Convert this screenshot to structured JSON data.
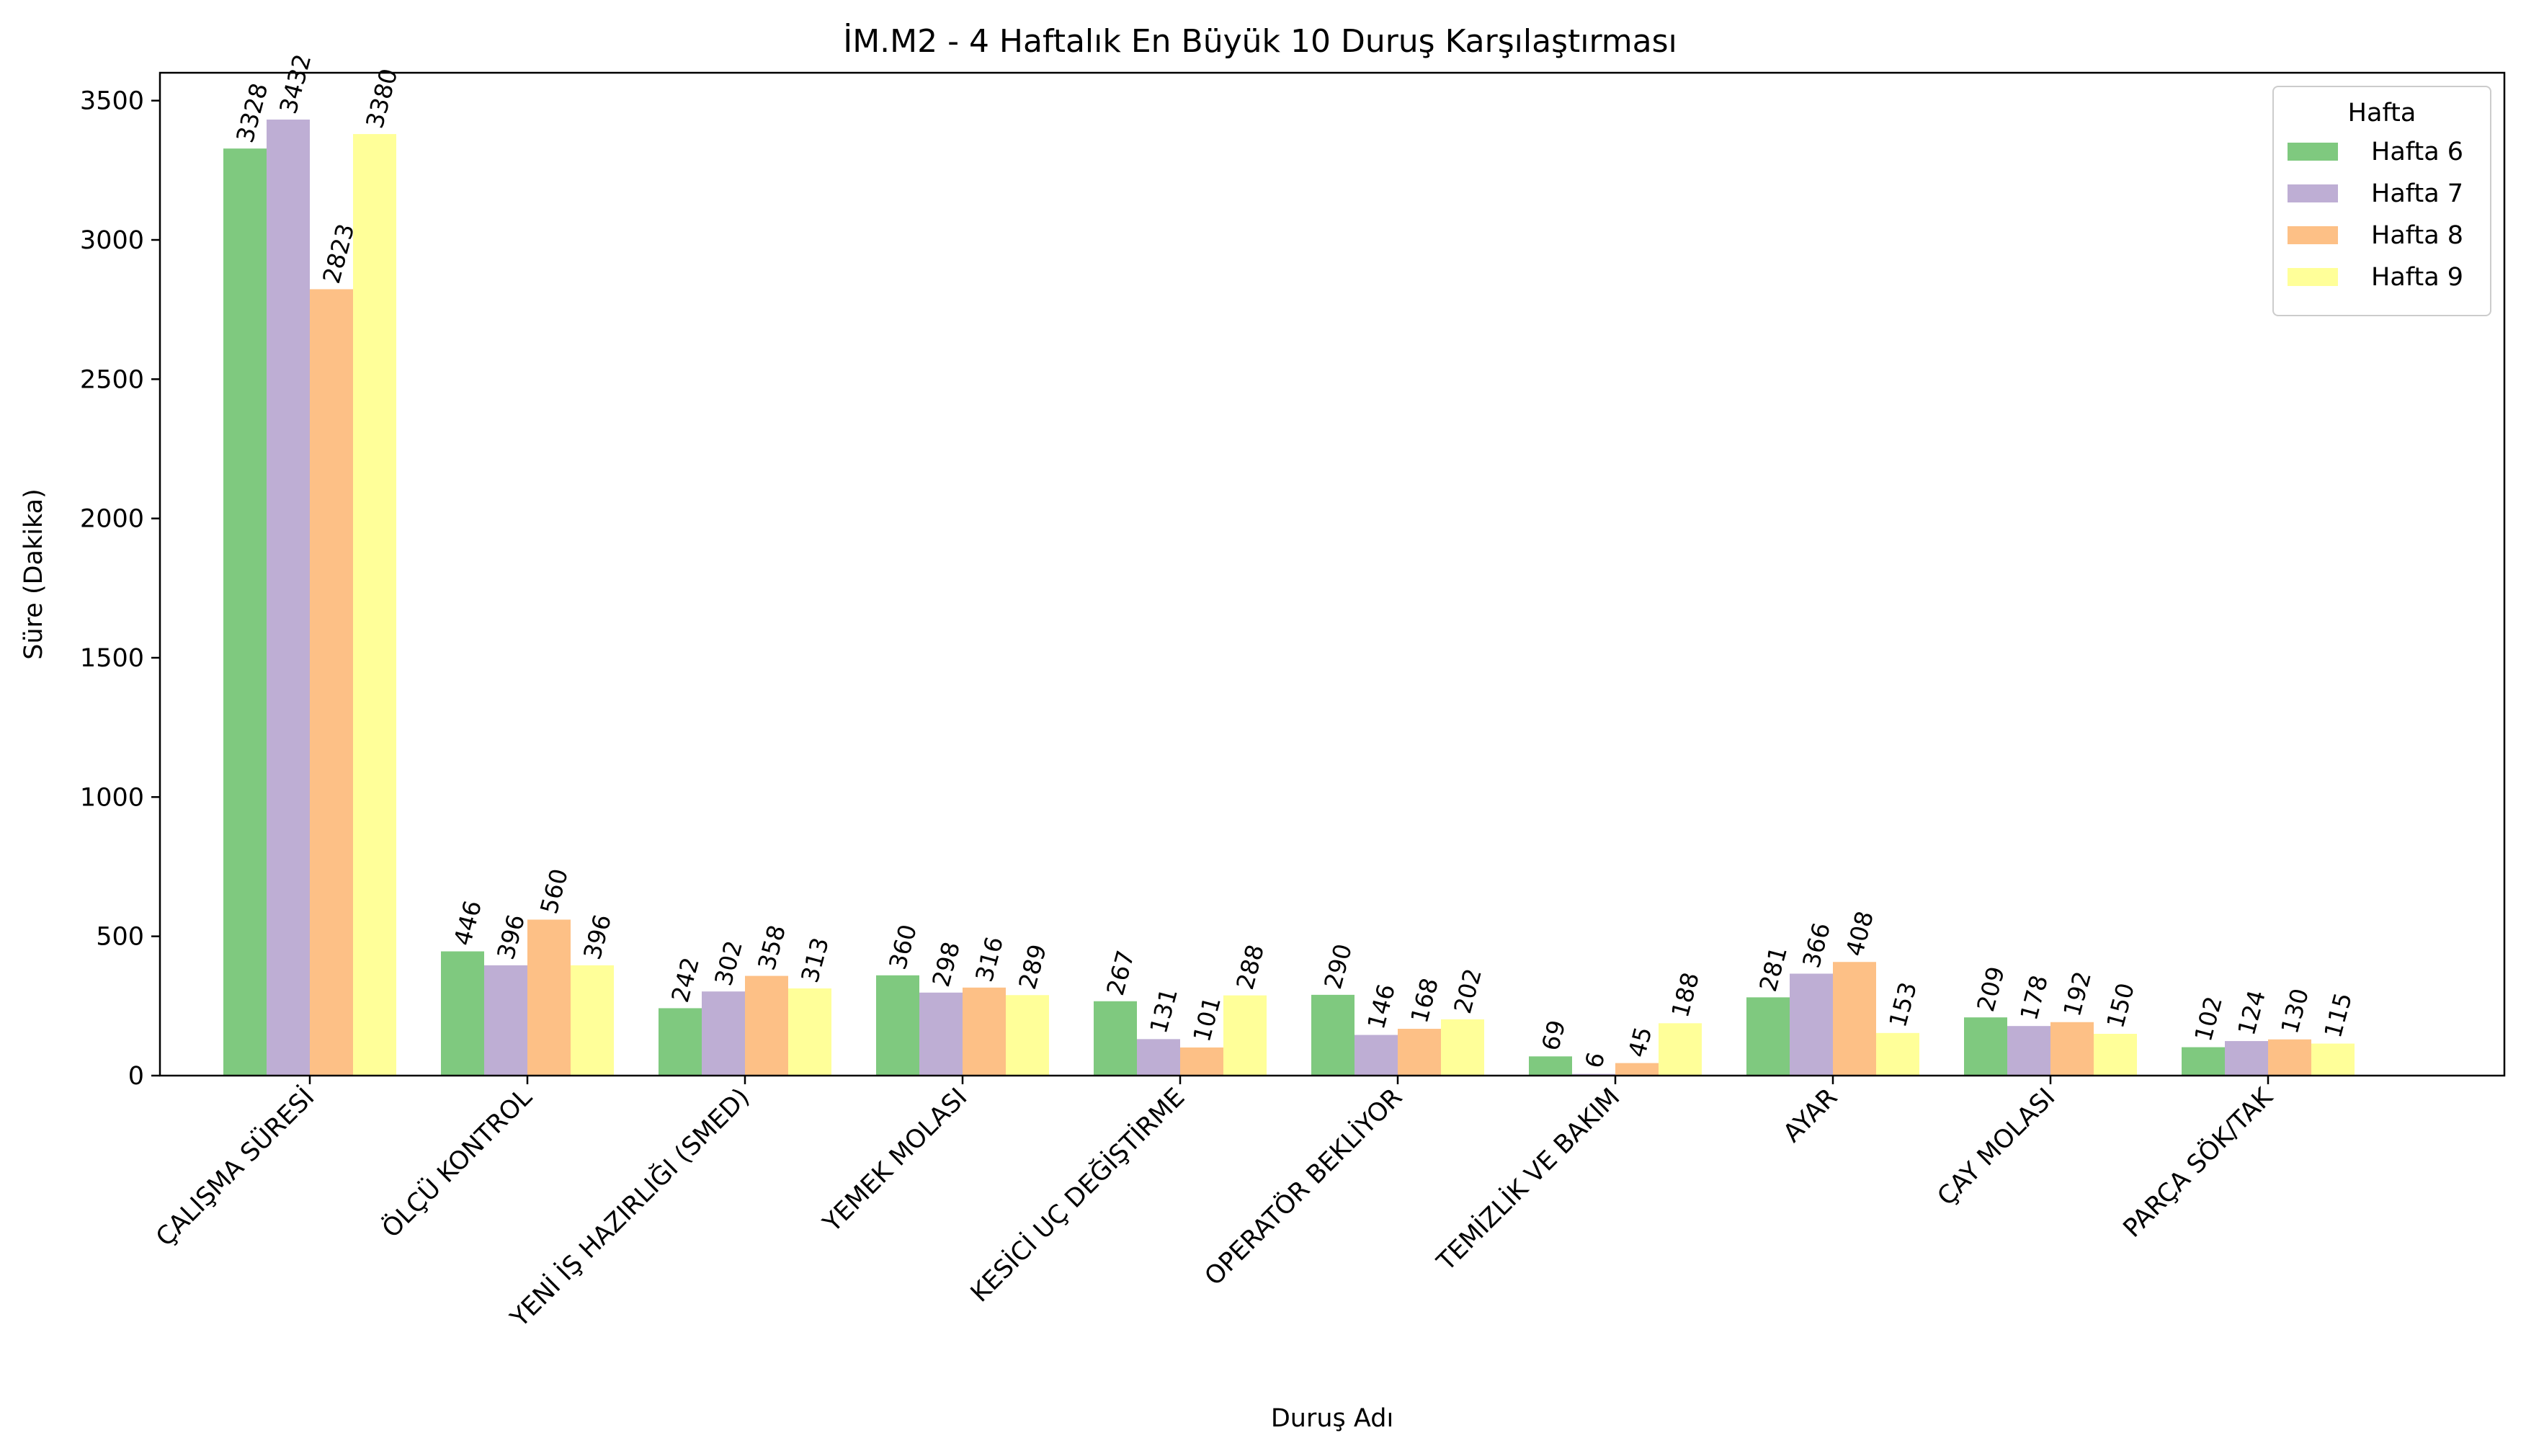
{
  "chart_data": {
    "type": "bar",
    "title": "İM.M2 - 4 Haftalık En Büyük 10 Duruş Karşılaştırması",
    "xlabel": "Duruş Adı",
    "ylabel": "Süre (Dakika)",
    "ylim": [
      0,
      3600
    ],
    "yticks": [
      0,
      500,
      1000,
      1500,
      2000,
      2500,
      3000,
      3500
    ],
    "grid": false,
    "legend": {
      "title": "Hafta",
      "placement": "top-right"
    },
    "categories": [
      "ÇALIŞMA SÜRESİ",
      "ÖLÇÜ KONTROL",
      "YENİ İŞ HAZIRLIĞI (SMED)",
      "YEMEK MOLASI",
      "KESİCİ UÇ DEĞİŞTİRME",
      "OPERATÖR BEKLİYOR",
      "TEMİZLİK VE BAKIM",
      "AYAR",
      "ÇAY MOLASI",
      "PARÇA SÖK/TAK"
    ],
    "series": [
      {
        "name": "Hafta 6",
        "color": "#7fc97f",
        "values": [
          3328,
          446,
          242,
          360,
          267,
          290,
          69,
          281,
          209,
          102
        ]
      },
      {
        "name": "Hafta 7",
        "color": "#beaed4",
        "values": [
          3432,
          396,
          302,
          298,
          131,
          146,
          6,
          366,
          178,
          124
        ]
      },
      {
        "name": "Hafta 8",
        "color": "#fdc086",
        "values": [
          2823,
          560,
          358,
          316,
          101,
          168,
          45,
          408,
          192,
          130
        ]
      },
      {
        "name": "Hafta 9",
        "color": "#ffff99",
        "values": [
          3380,
          396,
          313,
          289,
          288,
          202,
          188,
          153,
          150,
          115
        ]
      }
    ]
  }
}
